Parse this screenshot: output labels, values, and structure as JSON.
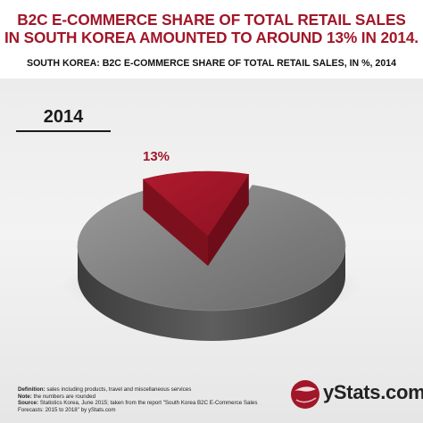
{
  "header": {
    "title_line1": "B2C E-COMMERCE SHARE OF TOTAL RETAIL SALES",
    "title_line2": "IN SOUTH KOREA AMOUNTED TO AROUND 13% IN 2014.",
    "subtitle": "SOUTH KOREA: B2C E-COMMERCE SHARE OF TOTAL RETAIL SALES, IN %, 2014"
  },
  "chart_data": {
    "type": "pie",
    "title": "2014",
    "slices": [
      {
        "label": "13%",
        "value": 13,
        "color": "#a11628"
      },
      {
        "label": "",
        "value": 87,
        "color": "#7d7d7d"
      }
    ]
  },
  "footer": {
    "definition_label": "Definition:",
    "definition_text": "sales including products, travel and miscellaneous services",
    "note_label": "Note:",
    "note_text": "the numbers are rounded",
    "source_label": "Source:",
    "source_text": "Statistics Korea, June 2015; taken from the report \"South Korea B2C E-Commerce Sales Forecasts: 2015 to 2018\" by yStats.com"
  },
  "brand": {
    "name": "yStats.com",
    "color": "#a11628"
  }
}
